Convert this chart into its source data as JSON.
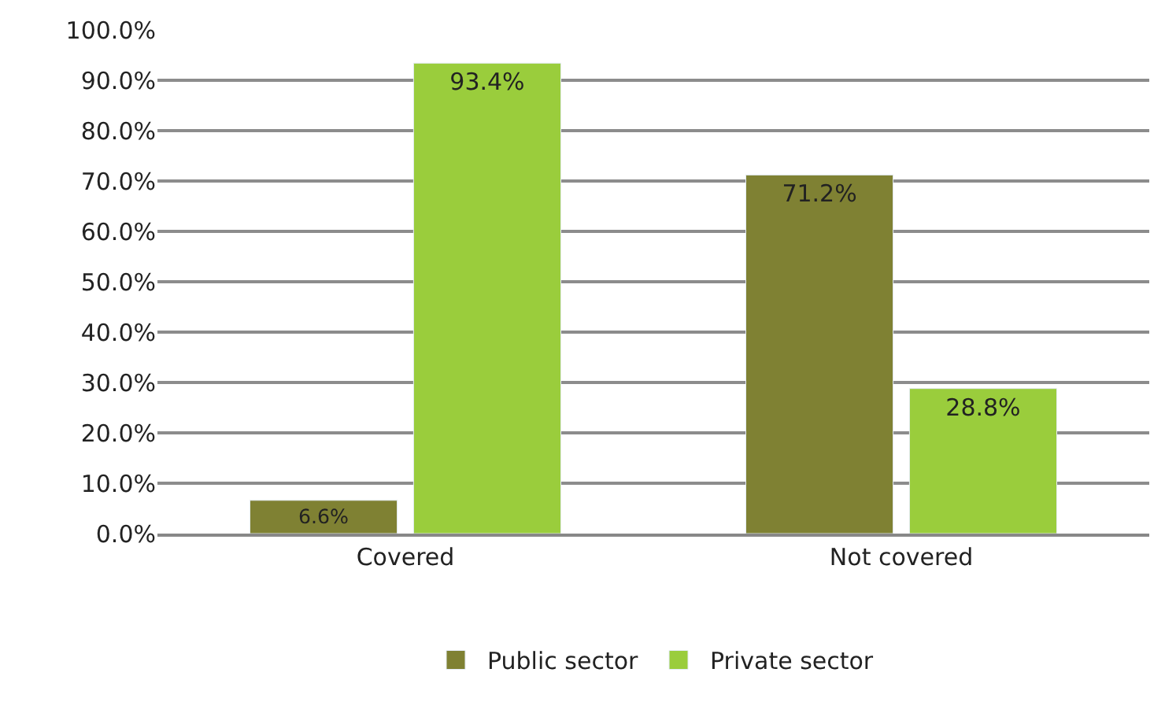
{
  "chart_data": {
    "type": "bar",
    "categories": [
      "Covered",
      "Not covered"
    ],
    "series": [
      {
        "name": "Public sector",
        "color": "#7f8133",
        "values": [
          6.6,
          71.2
        ],
        "value_labels": [
          "6.6%",
          "71.2%"
        ]
      },
      {
        "name": "Private sector",
        "color": "#9acd3c",
        "values": [
          93.4,
          28.8
        ],
        "value_labels": [
          "93.4%",
          "28.8%"
        ]
      }
    ],
    "ylim": [
      0,
      100
    ],
    "yticks": [
      {
        "value": 0,
        "label": "0.0%"
      },
      {
        "value": 10,
        "label": "10.0%"
      },
      {
        "value": 20,
        "label": "20.0%"
      },
      {
        "value": 30,
        "label": "30.0%"
      },
      {
        "value": 40,
        "label": "40.0%"
      },
      {
        "value": 50,
        "label": "50.0%"
      },
      {
        "value": 60,
        "label": "60.0%"
      },
      {
        "value": 70,
        "label": "70.0%"
      },
      {
        "value": 80,
        "label": "80.0%"
      },
      {
        "value": 90,
        "label": "90.0%"
      },
      {
        "value": 100,
        "label": "100.0%"
      }
    ],
    "grid": "y",
    "legend": "bottom"
  }
}
